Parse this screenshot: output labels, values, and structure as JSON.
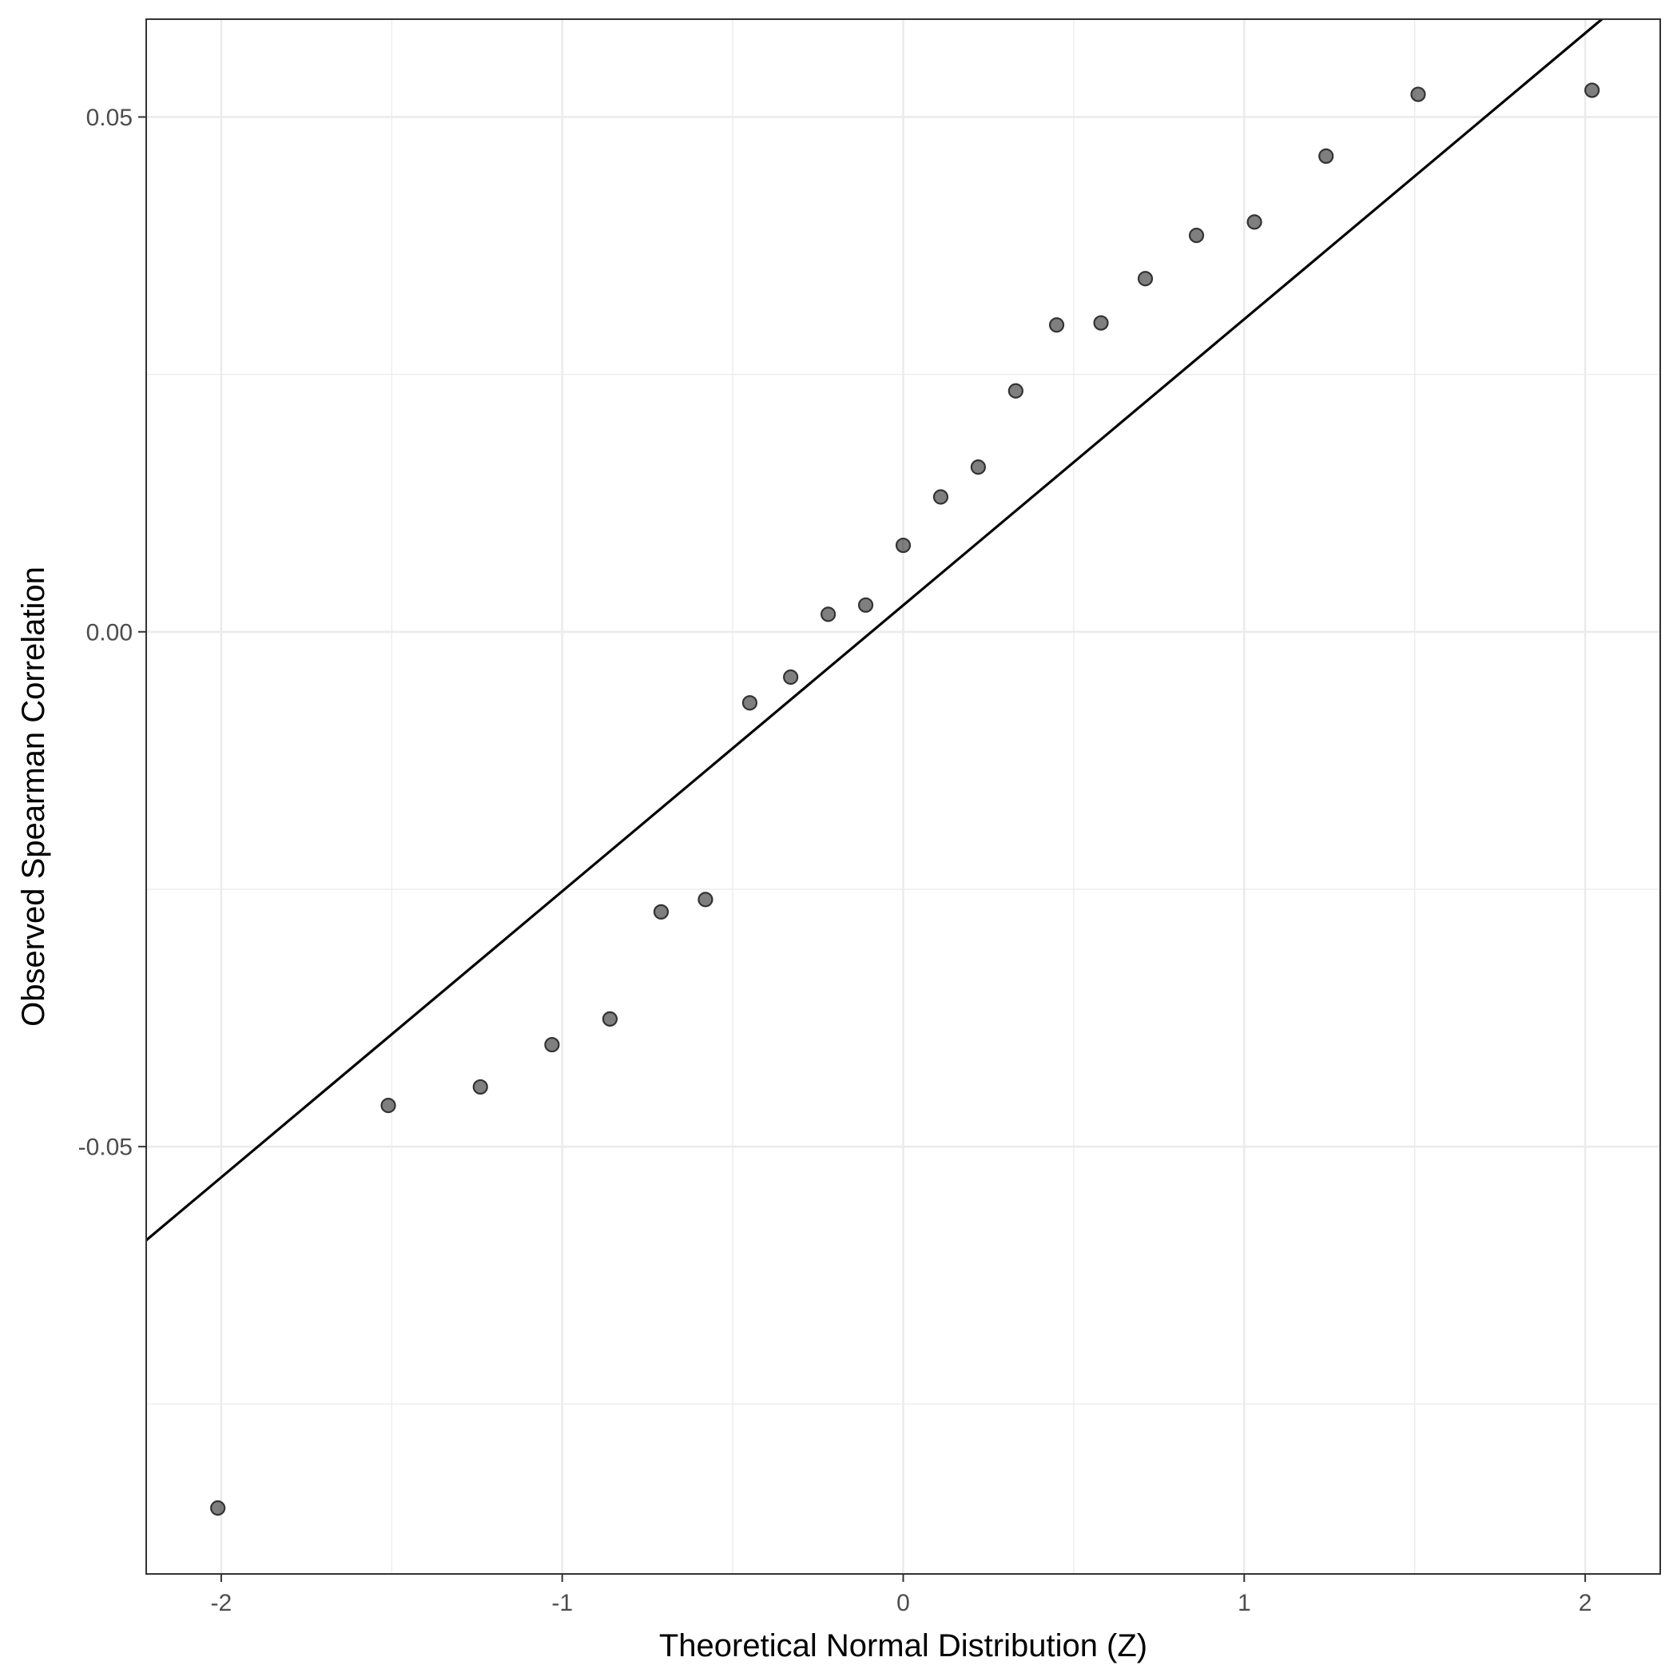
{
  "chart_data": {
    "type": "scatter",
    "title": "",
    "xlabel": "Theoretical Normal Distribution (Z)",
    "ylabel": "Observed Spearman Correlation",
    "xlim": [
      -2.22,
      2.22
    ],
    "ylim": [
      -0.0915,
      0.0595
    ],
    "x_ticks": [
      -2,
      -1,
      0,
      1,
      2
    ],
    "x_tick_labels": [
      "-2",
      "-1",
      "0",
      "1",
      "2"
    ],
    "x_minor_ticks": [
      -1.5,
      -0.5,
      0.5,
      1.5
    ],
    "y_ticks": [
      -0.05,
      0.0,
      0.05
    ],
    "y_tick_labels": [
      "-0.05",
      "0.00",
      "0.05"
    ],
    "y_minor_ticks": [
      -0.075,
      -0.025,
      0.025
    ],
    "grid": true,
    "legend": "none",
    "colors": {
      "point_fill": "#808080",
      "point_stroke": "#333333",
      "line": "#000000",
      "grid": "#ebebeb",
      "border": "#333333"
    },
    "reference_line": {
      "slope": 0.02778,
      "intercept": 0.00258
    },
    "points": [
      {
        "x": -2.01,
        "y": -0.0851
      },
      {
        "x": -1.51,
        "y": -0.046
      },
      {
        "x": -1.24,
        "y": -0.0442
      },
      {
        "x": -1.03,
        "y": -0.0401
      },
      {
        "x": -0.86,
        "y": -0.0376
      },
      {
        "x": -0.71,
        "y": -0.0272
      },
      {
        "x": -0.58,
        "y": -0.026
      },
      {
        "x": -0.45,
        "y": -0.0069
      },
      {
        "x": -0.33,
        "y": -0.0044
      },
      {
        "x": -0.22,
        "y": 0.0017
      },
      {
        "x": -0.11,
        "y": 0.0026
      },
      {
        "x": 0.0,
        "y": 0.0084
      },
      {
        "x": 0.11,
        "y": 0.0131
      },
      {
        "x": 0.22,
        "y": 0.016
      },
      {
        "x": 0.33,
        "y": 0.0234
      },
      {
        "x": 0.45,
        "y": 0.0298
      },
      {
        "x": 0.58,
        "y": 0.03
      },
      {
        "x": 0.71,
        "y": 0.0343
      },
      {
        "x": 0.86,
        "y": 0.0385
      },
      {
        "x": 1.03,
        "y": 0.0398
      },
      {
        "x": 1.24,
        "y": 0.0462
      },
      {
        "x": 1.51,
        "y": 0.0522
      },
      {
        "x": 2.02,
        "y": 0.0526
      }
    ]
  }
}
